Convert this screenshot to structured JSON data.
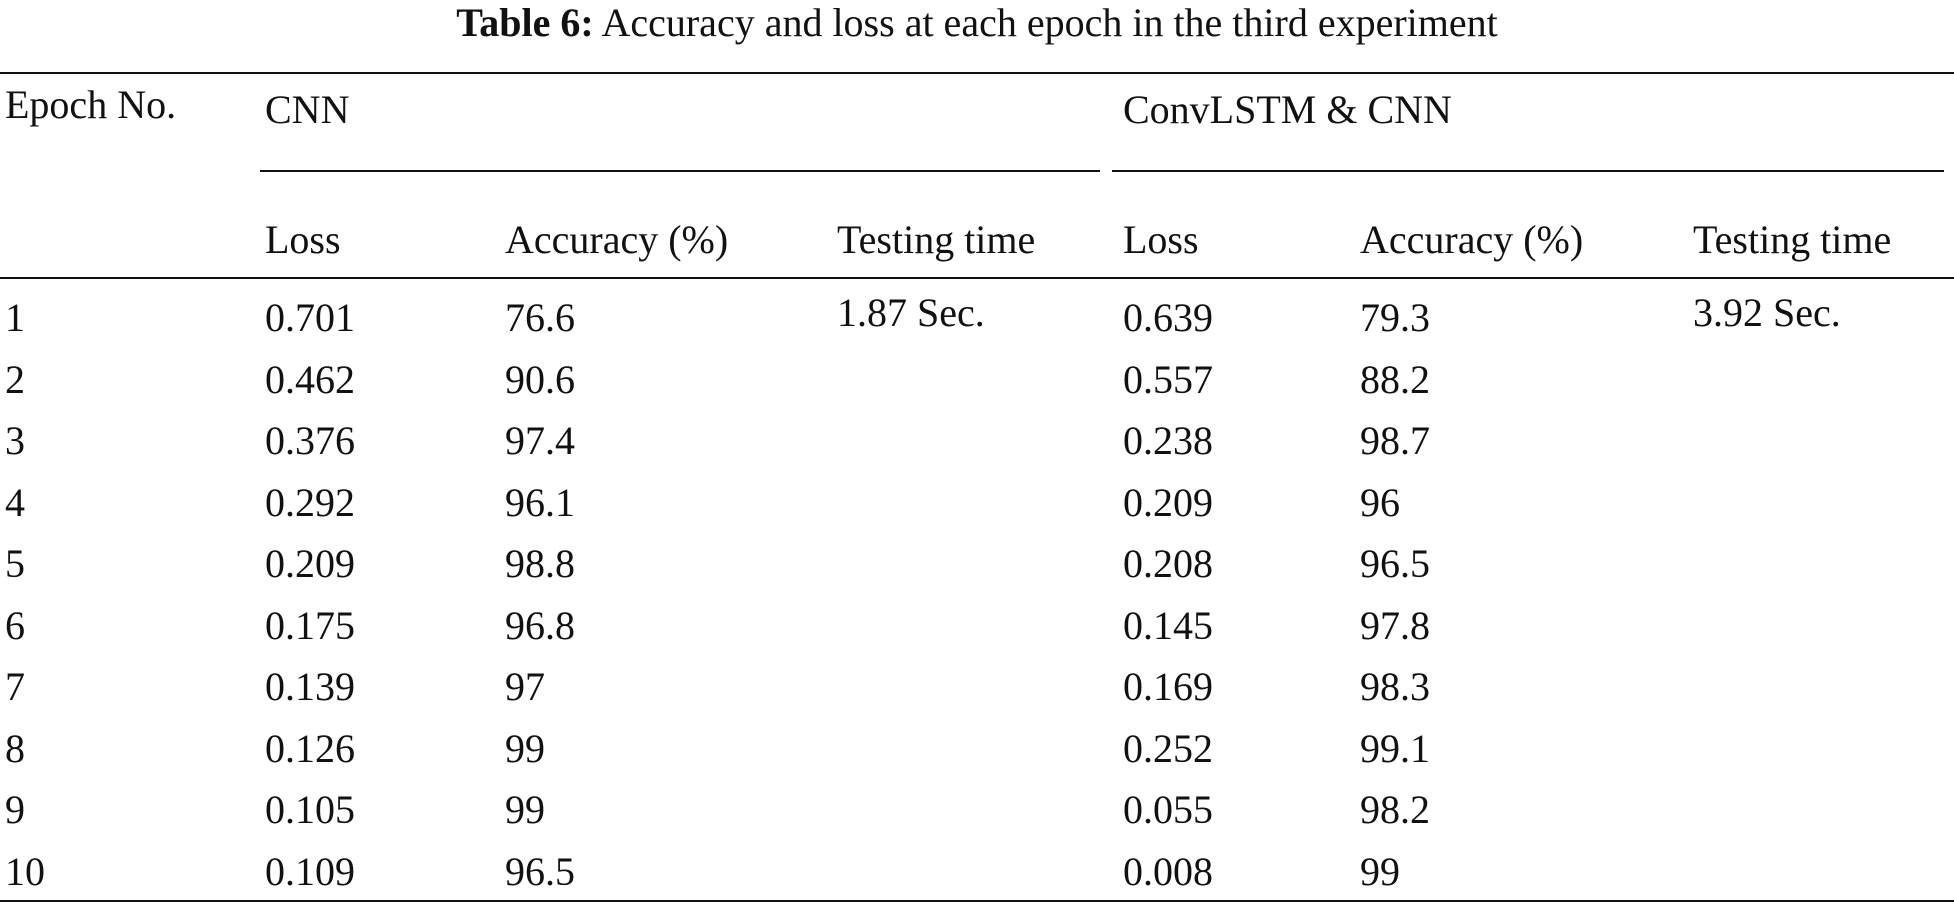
{
  "caption": {
    "label": "Table 6:",
    "text": "Accuracy and loss at each epoch in the third experiment"
  },
  "table": {
    "row_header": "Epoch No.",
    "groups": [
      {
        "name": "CNN",
        "columns": [
          "Loss",
          "Accuracy (%)",
          "Testing time"
        ],
        "testing_time": "1.87 Sec."
      },
      {
        "name": "ConvLSTM & CNN",
        "columns": [
          "Loss",
          "Accuracy (%)",
          "Testing time"
        ],
        "testing_time": "3.92 Sec."
      }
    ],
    "rows": [
      {
        "epoch": "1",
        "cnn_loss": "0.701",
        "cnn_acc": "76.6",
        "conv_loss": "0.639",
        "conv_acc": "79.3"
      },
      {
        "epoch": "2",
        "cnn_loss": "0.462",
        "cnn_acc": "90.6",
        "conv_loss": "0.557",
        "conv_acc": "88.2"
      },
      {
        "epoch": "3",
        "cnn_loss": "0.376",
        "cnn_acc": "97.4",
        "conv_loss": "0.238",
        "conv_acc": "98.7"
      },
      {
        "epoch": "4",
        "cnn_loss": "0.292",
        "cnn_acc": "96.1",
        "conv_loss": "0.209",
        "conv_acc": "96"
      },
      {
        "epoch": "5",
        "cnn_loss": "0.209",
        "cnn_acc": "98.8",
        "conv_loss": "0.208",
        "conv_acc": "96.5"
      },
      {
        "epoch": "6",
        "cnn_loss": "0.175",
        "cnn_acc": "96.8",
        "conv_loss": "0.145",
        "conv_acc": "97.8"
      },
      {
        "epoch": "7",
        "cnn_loss": "0.139",
        "cnn_acc": "97",
        "conv_loss": "0.169",
        "conv_acc": "98.3"
      },
      {
        "epoch": "8",
        "cnn_loss": "0.126",
        "cnn_acc": "99",
        "conv_loss": "0.252",
        "conv_acc": "99.1"
      },
      {
        "epoch": "9",
        "cnn_loss": "0.105",
        "cnn_acc": "99",
        "conv_loss": "0.055",
        "conv_acc": "98.2"
      },
      {
        "epoch": "10",
        "cnn_loss": "0.109",
        "cnn_acc": "96.5",
        "conv_loss": "0.008",
        "conv_acc": "99"
      }
    ]
  }
}
